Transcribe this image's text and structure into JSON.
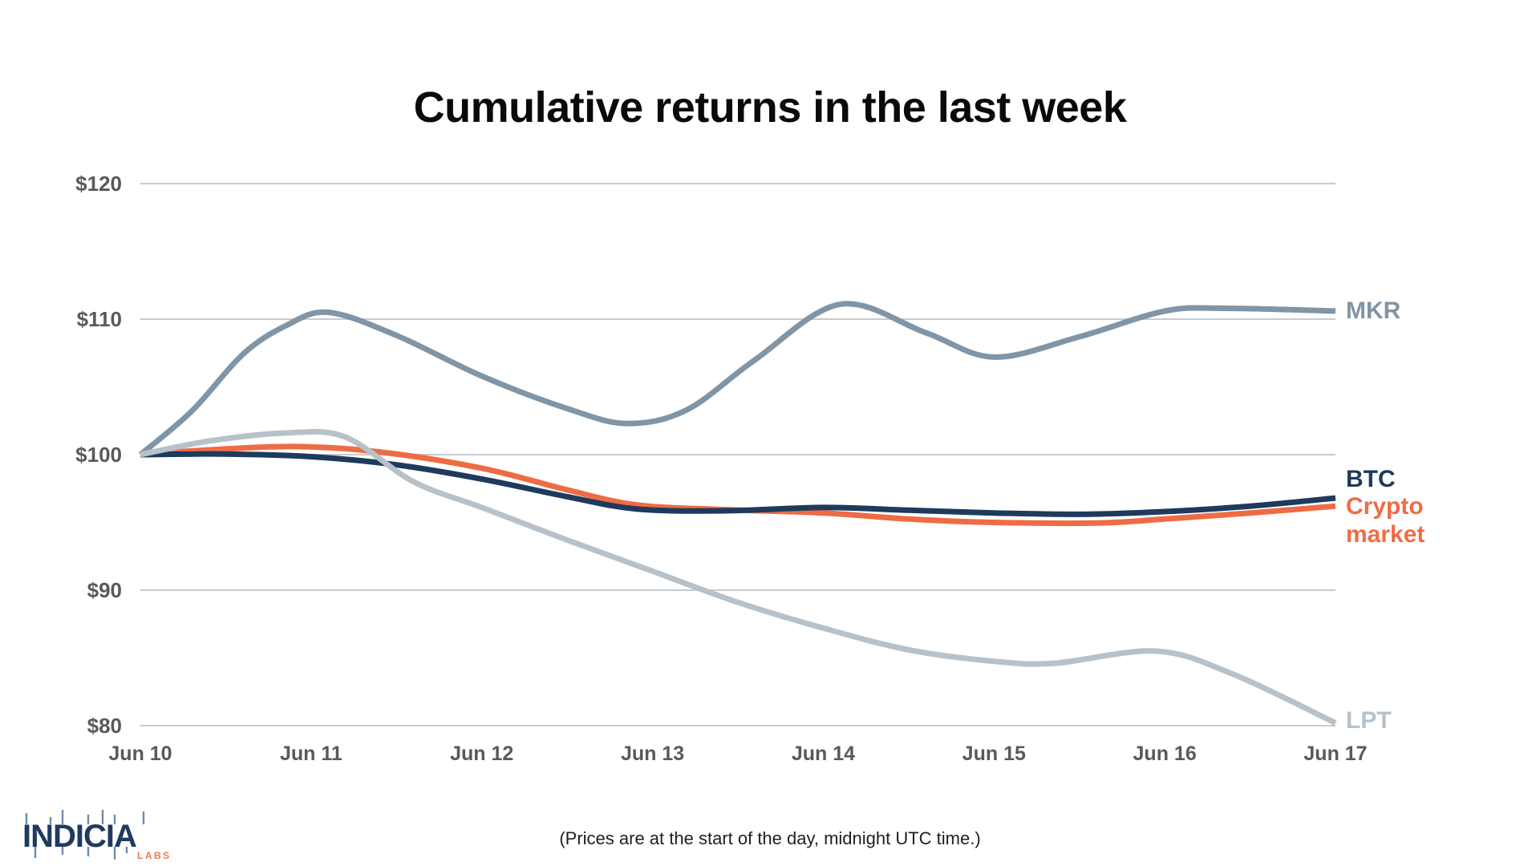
{
  "title": "Cumulative returns in the last week",
  "footnote": "(Prices are at the start of the day, midnight UTC time.)",
  "logo": {
    "wordmark": "INDICIA",
    "sub_label": "LABS",
    "wordmark_color": "#1e3a5f",
    "sub_color": "#f1784c",
    "wick_color": "#6f8cab"
  },
  "colors": {
    "background": "#ffffff",
    "grid": "#c9cacc",
    "axis_text": "#58595b",
    "title_text": "#0a0a0a"
  },
  "chart_data": {
    "type": "line",
    "title": "Cumulative returns in the last week",
    "xlabel": "",
    "ylabel": "",
    "categories": [
      "Jun 10",
      "Jun 11",
      "Jun 12",
      "Jun 13",
      "Jun 14",
      "Jun 15",
      "Jun 16",
      "Jun 17"
    ],
    "ylim": [
      80,
      120
    ],
    "ytick_values": [
      80,
      90,
      100,
      110,
      120
    ],
    "ytick_labels": [
      "$80",
      "$90",
      "$100",
      "$110",
      "$120"
    ],
    "grid": "horizontal-only",
    "legend_position": "right-line-end-labels",
    "series": [
      {
        "name": "MKR",
        "color": "#8095a6",
        "end_label_lines": [
          "MKR"
        ],
        "values": [
          100,
          110.4,
          105.8,
          102.6,
          111.0,
          107.2,
          110.6,
          110.6
        ],
        "smooth_points": [
          [
            0,
            100
          ],
          [
            0.3,
            103.2
          ],
          [
            0.6,
            107.4
          ],
          [
            0.85,
            109.5
          ],
          [
            1.1,
            110.5
          ],
          [
            1.5,
            108.8
          ],
          [
            2,
            105.8
          ],
          [
            2.5,
            103.4
          ],
          [
            2.85,
            102.3
          ],
          [
            3.2,
            103.3
          ],
          [
            3.6,
            107.0
          ],
          [
            4.1,
            111.1
          ],
          [
            4.6,
            109.0
          ],
          [
            5,
            107.2
          ],
          [
            5.5,
            108.7
          ],
          [
            6,
            110.6
          ],
          [
            6.35,
            110.8
          ],
          [
            7,
            110.6
          ]
        ]
      },
      {
        "name": "Crypto market",
        "color": "#ee6c45",
        "end_label_lines": [
          "Crypto",
          "market"
        ],
        "values": [
          100,
          100.6,
          99.0,
          96.1,
          95.7,
          95.0,
          95.3,
          96.2
        ],
        "smooth_points": [
          [
            0,
            100
          ],
          [
            0.4,
            100.35
          ],
          [
            0.9,
            100.6
          ],
          [
            1.4,
            100.2
          ],
          [
            2,
            99.0
          ],
          [
            2.5,
            97.4
          ],
          [
            2.9,
            96.3
          ],
          [
            3.4,
            95.95
          ],
          [
            4,
            95.7
          ],
          [
            4.5,
            95.25
          ],
          [
            5,
            95.0
          ],
          [
            5.6,
            94.95
          ],
          [
            6,
            95.25
          ],
          [
            6.5,
            95.7
          ],
          [
            7,
            96.2
          ]
        ]
      },
      {
        "name": "BTC",
        "color": "#1e3a5c",
        "end_label_lines": [
          "BTC"
        ],
        "values": [
          100,
          99.9,
          98.2,
          95.9,
          96.1,
          95.7,
          95.8,
          96.8
        ],
        "smooth_points": [
          [
            0,
            100
          ],
          [
            0.5,
            100.05
          ],
          [
            1,
            99.85
          ],
          [
            1.5,
            99.25
          ],
          [
            2,
            98.2
          ],
          [
            2.5,
            96.9
          ],
          [
            2.9,
            96.0
          ],
          [
            3.4,
            95.85
          ],
          [
            4,
            96.1
          ],
          [
            4.5,
            95.9
          ],
          [
            5,
            95.7
          ],
          [
            5.5,
            95.6
          ],
          [
            6,
            95.8
          ],
          [
            6.5,
            96.2
          ],
          [
            7,
            96.8
          ]
        ]
      },
      {
        "name": "LPT",
        "color": "#b7c1c9",
        "end_label_lines": [
          "LPT"
        ],
        "values": [
          100,
          101.5,
          96.1,
          91.4,
          87.2,
          84.8,
          85.4,
          80.2
        ],
        "smooth_points": [
          [
            0,
            100
          ],
          [
            0.4,
            101.0
          ],
          [
            0.85,
            101.6
          ],
          [
            1.2,
            101.3
          ],
          [
            1.6,
            98.0
          ],
          [
            2,
            96.1
          ],
          [
            2.5,
            93.7
          ],
          [
            3,
            91.4
          ],
          [
            3.5,
            89.1
          ],
          [
            4,
            87.2
          ],
          [
            4.5,
            85.6
          ],
          [
            5,
            84.75
          ],
          [
            5.35,
            84.6
          ],
          [
            5.95,
            85.5
          ],
          [
            6.4,
            83.8
          ],
          [
            7,
            80.2
          ]
        ]
      }
    ]
  }
}
